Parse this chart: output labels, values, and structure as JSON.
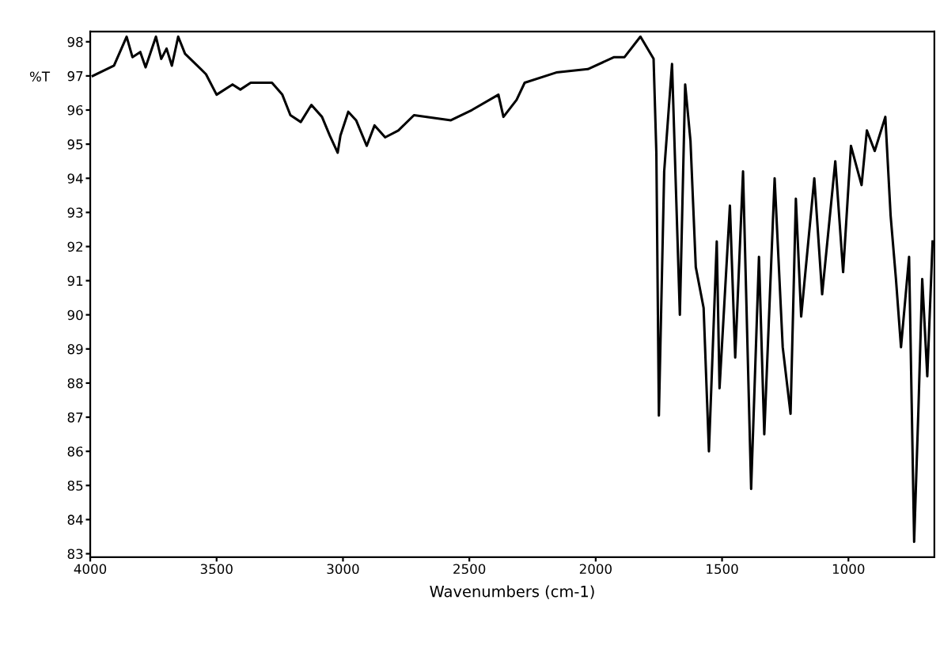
{
  "chart_data": {
    "type": "line",
    "xlabel": "Wavenumbers (cm-1)",
    "ylabel": "%T",
    "x": [
      3990,
      3906,
      3856,
      3833,
      3802,
      3781,
      3740,
      3719,
      3698,
      3677,
      3652,
      3625,
      3583,
      3542,
      3500,
      3437,
      3406,
      3365,
      3281,
      3240,
      3208,
      3167,
      3125,
      3083,
      3052,
      3021,
      3010,
      2979,
      2948,
      2906,
      2875,
      2833,
      2781,
      2719,
      2573,
      2490,
      2385,
      2365,
      2313,
      2281,
      2156,
      2031,
      1927,
      1886,
      1823,
      1771,
      1760,
      1750,
      1729,
      1698,
      1667,
      1646,
      1625,
      1604,
      1573,
      1552,
      1521,
      1510,
      1469,
      1448,
      1417,
      1385,
      1354,
      1333,
      1292,
      1260,
      1229,
      1208,
      1187,
      1135,
      1104,
      1052,
      1021,
      990,
      948,
      927,
      896,
      854,
      833,
      812,
      792,
      760,
      740,
      723,
      708,
      688,
      667
    ],
    "series": [
      {
        "color": "#000000",
        "values": [
          97.0,
          97.3,
          98.15,
          97.55,
          97.7,
          97.25,
          98.15,
          97.5,
          97.8,
          97.3,
          98.15,
          97.65,
          97.35,
          97.05,
          96.45,
          96.75,
          96.6,
          96.8,
          96.8,
          96.45,
          95.85,
          95.65,
          96.15,
          95.8,
          95.25,
          94.75,
          95.25,
          95.95,
          95.7,
          94.95,
          95.55,
          95.2,
          95.4,
          95.85,
          95.7,
          96.0,
          96.45,
          95.8,
          96.3,
          96.8,
          97.1,
          97.2,
          97.55,
          97.55,
          98.15,
          97.5,
          94.75,
          87.05,
          94.2,
          97.35,
          90.0,
          96.75,
          95.1,
          91.4,
          90.2,
          86.0,
          92.15,
          87.85,
          93.2,
          88.75,
          94.2,
          84.9,
          91.7,
          86.5,
          94.0,
          89.05,
          87.1,
          93.4,
          89.95,
          94.0,
          90.6,
          94.5,
          91.25,
          94.95,
          93.8,
          95.4,
          94.8,
          95.8,
          92.9,
          91.05,
          89.05,
          91.7,
          83.35,
          87.25,
          91.05,
          88.2,
          92.15
        ]
      }
    ],
    "xlim": [
      4000,
      660
    ],
    "ylim": [
      82.9,
      98.3
    ],
    "xticks": [
      4000,
      3500,
      3000,
      2500,
      2000,
      1500,
      1000
    ],
    "yticks": [
      83,
      84,
      85,
      86,
      87,
      88,
      89,
      90,
      91,
      92,
      93,
      94,
      95,
      96,
      97,
      98
    ],
    "marker": "none",
    "line_style": "solid"
  }
}
